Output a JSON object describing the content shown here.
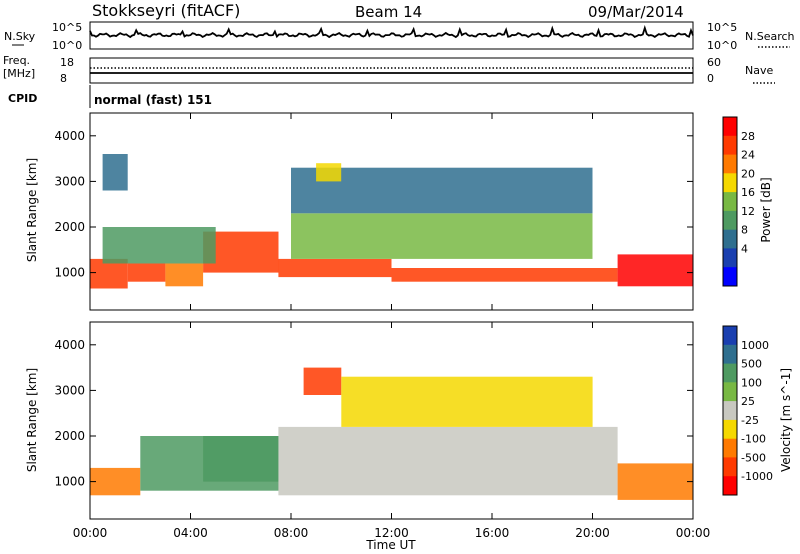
{
  "header": {
    "station": "Stokkseyri (fitACF)",
    "beam": "Beam 14",
    "date": "09/Mar/2014"
  },
  "strip_labels": {
    "nsky": "N.Sky",
    "nsky_ticks": [
      "10^5",
      "10^0"
    ],
    "nsearch": "N.Search",
    "nsearch_ticks": [
      "10^5",
      "10^0"
    ],
    "freq": "Freq.",
    "freq_unit": "[MHz]",
    "freq_ticks": [
      "18",
      "8"
    ],
    "nave": "Nave",
    "nave_ticks": [
      "60",
      "0"
    ],
    "cpid": "CPID",
    "cpid_value": "normal (fast) 151"
  },
  "chart_data": [
    {
      "type": "heatmap",
      "title": "",
      "xlabel": "Time UT",
      "ylabel": "Slant Range [km]",
      "xlim": [
        0,
        24
      ],
      "ylim": [
        180,
        4500
      ],
      "xticks": [
        "00:00",
        "04:00",
        "08:00",
        "12:00",
        "16:00",
        "20:00",
        "00:00"
      ],
      "yticks": [
        1000,
        2000,
        3000,
        4000
      ],
      "colorbar": {
        "label": "Power [dB]",
        "ticks": [
          "28",
          "24",
          "20",
          "16",
          "12",
          "8",
          "4"
        ],
        "colors": [
          "#ff0000",
          "#ff3a00",
          "#ff7a00",
          "#f5d800",
          "#78b843",
          "#4e9a61",
          "#2f6f8f",
          "#1a3fb0",
          "#0000ff"
        ]
      },
      "regions": [
        {
          "t": [
            0.0,
            1.5
          ],
          "r": [
            650,
            1300
          ],
          "value": 26
        },
        {
          "t": [
            1.5,
            3.0
          ],
          "r": [
            800,
            1200
          ],
          "value": 24
        },
        {
          "t": [
            3.0,
            4.5
          ],
          "r": [
            700,
            1200
          ],
          "value": 22
        },
        {
          "t": [
            4.5,
            7.5
          ],
          "r": [
            1000,
            1900
          ],
          "value": 27
        },
        {
          "t": [
            7.5,
            12.0
          ],
          "r": [
            900,
            1300
          ],
          "value": 24
        },
        {
          "t": [
            12.0,
            21.0
          ],
          "r": [
            800,
            1100
          ],
          "value": 26
        },
        {
          "t": [
            21.0,
            24.0
          ],
          "r": [
            700,
            1400
          ],
          "value": 28
        },
        {
          "t": [
            8.0,
            20.0
          ],
          "r": [
            1300,
            2300
          ],
          "value": 14
        },
        {
          "t": [
            0.5,
            5.0
          ],
          "r": [
            1200,
            2000
          ],
          "value": 9
        },
        {
          "t": [
            8.0,
            20.0
          ],
          "r": [
            2300,
            3300
          ],
          "value": 6
        },
        {
          "t": [
            0.5,
            1.5
          ],
          "r": [
            2800,
            3600
          ],
          "value": 6
        },
        {
          "t": [
            9.0,
            10.0
          ],
          "r": [
            3000,
            3400
          ],
          "value": 17
        }
      ]
    },
    {
      "type": "heatmap",
      "title": "",
      "xlabel": "Time UT",
      "ylabel": "Slant Range [km]",
      "xlim": [
        0,
        24
      ],
      "ylim": [
        180,
        4500
      ],
      "xticks": [
        "00:00",
        "04:00",
        "08:00",
        "12:00",
        "16:00",
        "20:00",
        "00:00"
      ],
      "yticks": [
        1000,
        2000,
        3000,
        4000
      ],
      "colorbar": {
        "label": "Velocity [m s^-1]",
        "ticks": [
          "1000",
          "500",
          "100",
          "25",
          "-25",
          "-100",
          "-500",
          "-1000"
        ],
        "colors": [
          "#1a3fb0",
          "#2f6f8f",
          "#4e9a61",
          "#78b843",
          "#c8c8c0",
          "#f5d800",
          "#ff7a00",
          "#ff3a00",
          "#ff0000"
        ]
      },
      "regions": [
        {
          "t": [
            0.0,
            2.0
          ],
          "r": [
            700,
            1300
          ],
          "value": -300
        },
        {
          "t": [
            2.0,
            7.5
          ],
          "r": [
            800,
            2000
          ],
          "value": 150
        },
        {
          "t": [
            4.5,
            7.5
          ],
          "r": [
            1000,
            2000
          ],
          "value": 100
        },
        {
          "t": [
            7.5,
            21.0
          ],
          "r": [
            700,
            2200
          ],
          "value": 0
        },
        {
          "t": [
            21.0,
            24.0
          ],
          "r": [
            600,
            1400
          ],
          "value": -500
        },
        {
          "t": [
            8.5,
            10.0
          ],
          "r": [
            2900,
            3500
          ],
          "value": -600
        },
        {
          "t": [
            10.0,
            20.0
          ],
          "r": [
            2200,
            3300
          ],
          "value": -50
        }
      ]
    }
  ]
}
